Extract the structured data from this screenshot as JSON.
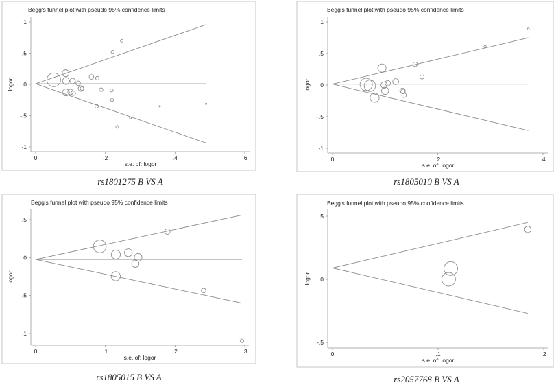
{
  "chart_data": [
    {
      "type": "scatter",
      "title": "Begg's funnel plot with pseudo 95% confidence limits",
      "caption": "rs1801275 B VS A",
      "xlabel": "s.e. of: logor",
      "ylabel": "logor",
      "xlim": [
        0,
        0.6
      ],
      "ylim": [
        -1,
        1
      ],
      "xticks": [
        {
          "v": 0,
          "label": "0"
        },
        {
          "v": 0.2,
          "label": ".2"
        },
        {
          "v": 0.4,
          "label": ".4"
        },
        {
          "v": 0.6,
          "label": ".6"
        }
      ],
      "yticks": [
        {
          "v": -1,
          "label": "-1"
        },
        {
          "v": -0.5,
          "label": "-.5"
        },
        {
          "v": 0,
          "label": "0"
        },
        {
          "v": 0.5,
          "label": ".5"
        },
        {
          "v": 1,
          "label": "1"
        }
      ],
      "pooled": 0.01,
      "funnel_end_se": 0.49,
      "funnel_upper": 0.96,
      "funnel_lower": -0.94,
      "points": [
        {
          "se": 0.052,
          "logor": 0.073,
          "weight": 100
        },
        {
          "se": 0.086,
          "logor": 0.18,
          "weight": 25
        },
        {
          "se": 0.087,
          "logor": 0.055,
          "weight": 25
        },
        {
          "se": 0.106,
          "logor": 0.055,
          "weight": 16
        },
        {
          "se": 0.122,
          "logor": 0.018,
          "weight": 11
        },
        {
          "se": 0.13,
          "logor": -0.066,
          "weight": 16
        },
        {
          "se": 0.133,
          "logor": -0.066,
          "weight": 7
        },
        {
          "se": 0.087,
          "logor": -0.128,
          "weight": 25
        },
        {
          "se": 0.1,
          "logor": -0.12,
          "weight": 16
        },
        {
          "se": 0.108,
          "logor": -0.14,
          "weight": 11
        },
        {
          "se": 0.16,
          "logor": 0.12,
          "weight": 11
        },
        {
          "se": 0.177,
          "logor": 0.1,
          "weight": 7
        },
        {
          "se": 0.188,
          "logor": -0.084,
          "weight": 7
        },
        {
          "se": 0.218,
          "logor": -0.095,
          "weight": 5
        },
        {
          "se": 0.219,
          "logor": -0.25,
          "weight": 5
        },
        {
          "se": 0.221,
          "logor": 0.52,
          "weight": 5
        },
        {
          "se": 0.247,
          "logor": 0.7,
          "weight": 4
        },
        {
          "se": 0.175,
          "logor": -0.35,
          "weight": 7
        },
        {
          "se": 0.234,
          "logor": -0.68,
          "weight": 4
        },
        {
          "se": 0.272,
          "logor": -0.535,
          "weight": 2
        },
        {
          "se": 0.356,
          "logor": -0.35,
          "weight": 1
        },
        {
          "se": 0.489,
          "logor": -0.31,
          "weight": 0.5
        }
      ]
    },
    {
      "type": "scatter",
      "title": "Begg's funnel plot with pseudo 95% confidence limits",
      "caption": "rs1805010 B VS A",
      "xlabel": "s.e. of: logor",
      "ylabel": "logor",
      "xlim": [
        0,
        0.4
      ],
      "ylim": [
        -1,
        1
      ],
      "xticks": [
        {
          "v": 0,
          "label": "0"
        },
        {
          "v": 0.2,
          "label": ".2"
        },
        {
          "v": 0.4,
          "label": ".4"
        }
      ],
      "yticks": [
        {
          "v": -1,
          "label": "-1"
        },
        {
          "v": -0.5,
          "label": "-.5"
        },
        {
          "v": 0,
          "label": "0"
        },
        {
          "v": 0.5,
          "label": ".5"
        },
        {
          "v": 1,
          "label": "1"
        }
      ],
      "pooled": 0.015,
      "funnel_end_se": 0.372,
      "funnel_upper": 0.75,
      "funnel_lower": -0.72,
      "points": [
        {
          "se": 0.372,
          "logor": 0.89,
          "weight": 2
        },
        {
          "se": 0.29,
          "logor": 0.61,
          "weight": 3
        },
        {
          "se": 0.157,
          "logor": 0.33,
          "weight": 11
        },
        {
          "se": 0.17,
          "logor": 0.13,
          "weight": 9
        },
        {
          "se": 0.094,
          "logor": 0.27,
          "weight": 36
        },
        {
          "se": 0.064,
          "logor": 0.01,
          "weight": 81
        },
        {
          "se": 0.071,
          "logor": -0.01,
          "weight": 69
        },
        {
          "se": 0.08,
          "logor": -0.2,
          "weight": 44
        },
        {
          "se": 0.098,
          "logor": 0.0,
          "weight": 22
        },
        {
          "se": 0.105,
          "logor": 0.03,
          "weight": 16
        },
        {
          "se": 0.1,
          "logor": -0.09,
          "weight": 28
        },
        {
          "se": 0.12,
          "logor": 0.055,
          "weight": 19
        },
        {
          "se": 0.133,
          "logor": -0.09,
          "weight": 16
        },
        {
          "se": 0.134,
          "logor": -0.1,
          "weight": 11
        },
        {
          "se": 0.136,
          "logor": -0.16,
          "weight": 11
        }
      ]
    },
    {
      "type": "scatter",
      "title": "Begg's funnel plot with pseudo 95% confidence limits",
      "caption": "rs1805015 B VS A",
      "xlabel": "s.e. of: logor",
      "ylabel": "logor",
      "xlim": [
        0,
        0.3
      ],
      "ylim": [
        -1,
        0.5
      ],
      "xticks": [
        {
          "v": 0,
          "label": "0"
        },
        {
          "v": 0.1,
          "label": ".1"
        },
        {
          "v": 0.2,
          "label": ".2"
        },
        {
          "v": 0.3,
          "label": ".3"
        }
      ],
      "yticks": [
        {
          "v": -1,
          "label": "-1"
        },
        {
          "v": -0.5,
          "label": "-.5"
        },
        {
          "v": 0,
          "label": "0"
        },
        {
          "v": 0.5,
          "label": ".5"
        }
      ],
      "pooled": -0.025,
      "funnel_end_se": 0.296,
      "funnel_upper": 0.56,
      "funnel_lower": -0.6,
      "points": [
        {
          "se": 0.092,
          "logor": 0.148,
          "weight": 87
        },
        {
          "se": 0.115,
          "logor": 0.04,
          "weight": 44
        },
        {
          "se": 0.133,
          "logor": 0.064,
          "weight": 32
        },
        {
          "se": 0.147,
          "logor": 0.003,
          "weight": 32
        },
        {
          "se": 0.143,
          "logor": -0.08,
          "weight": 28
        },
        {
          "se": 0.115,
          "logor": -0.245,
          "weight": 44
        },
        {
          "se": 0.189,
          "logor": 0.342,
          "weight": 16
        },
        {
          "se": 0.241,
          "logor": -0.433,
          "weight": 11
        },
        {
          "se": 0.296,
          "logor": -1.097,
          "weight": 7
        }
      ]
    },
    {
      "type": "scatter",
      "title": "Begg's funnel plot with pseudo 95% confidence limits",
      "caption": "rs2057768 B VS A",
      "xlabel": "s.e. of: logor",
      "ylabel": "logor",
      "xlim": [
        0,
        0.2
      ],
      "ylim": [
        -0.5,
        0.5
      ],
      "xticks": [
        {
          "v": 0,
          "label": "0"
        },
        {
          "v": 0.1,
          "label": ".1"
        },
        {
          "v": 0.2,
          "label": ".2"
        }
      ],
      "yticks": [
        {
          "v": -0.5,
          "label": "-.5"
        },
        {
          "v": 0,
          "label": "0"
        },
        {
          "v": 0.5,
          "label": ".5"
        }
      ],
      "pooled": 0.09,
      "funnel_end_se": 0.185,
      "funnel_upper": 0.45,
      "funnel_lower": -0.27,
      "points": [
        {
          "se": 0.112,
          "logor": 0.085,
          "weight": 100
        },
        {
          "se": 0.11,
          "logor": 0.0,
          "weight": 100
        },
        {
          "se": 0.185,
          "logor": 0.395,
          "weight": 22
        }
      ]
    }
  ]
}
